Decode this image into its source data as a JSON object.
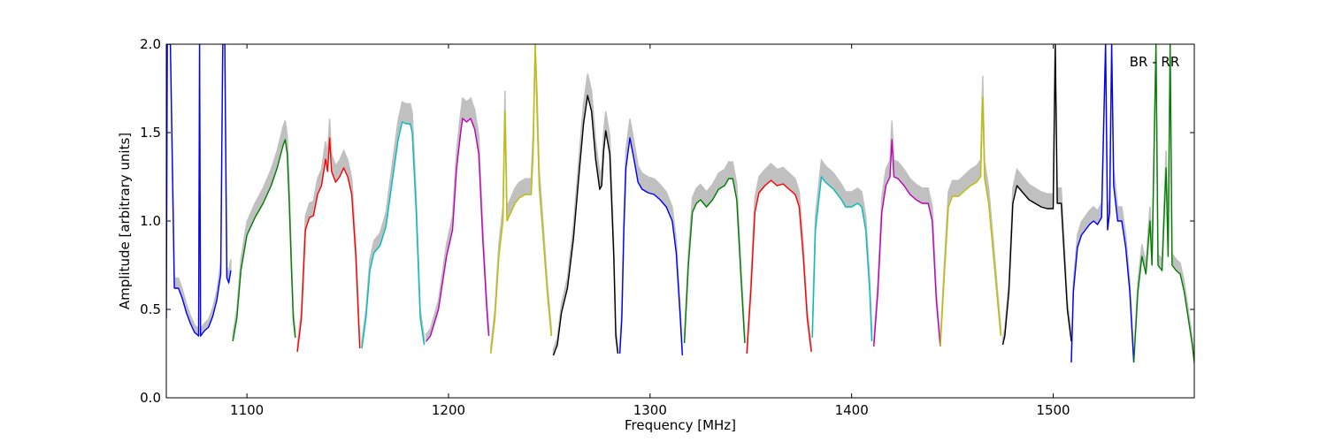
{
  "chart_data": {
    "type": "line",
    "title": "",
    "xlabel": "Frequency [MHz]",
    "ylabel": "Amplitude [arbitrary units]",
    "annotation": "BR - RR",
    "xlim": [
      1060,
      1570
    ],
    "ylim": [
      0,
      2.0
    ],
    "xticks": [
      1100,
      1200,
      1300,
      1400,
      1500
    ],
    "xtick_labels": [
      "1100",
      "1200",
      "1300",
      "1400",
      "1500"
    ],
    "yticks": [
      0.0,
      0.5,
      1.0,
      1.5,
      2.0
    ],
    "ytick_labels": [
      "0.0",
      "0.5",
      "1.0",
      "1.5",
      "2.0"
    ],
    "grid": false,
    "background_color": "#c0c0c0",
    "series": [
      {
        "color": "#0000ff",
        "points": [
          [
            1060,
            0.45
          ],
          [
            1060.5,
            2.0
          ],
          [
            1062,
            2.0
          ],
          [
            1064,
            0.62
          ],
          [
            1066,
            0.62
          ],
          [
            1068,
            0.56
          ],
          [
            1070,
            0.48
          ],
          [
            1072,
            0.42
          ],
          [
            1074,
            0.37
          ],
          [
            1076,
            0.35
          ],
          [
            1076.5,
            2.0
          ],
          [
            1077,
            0.35
          ],
          [
            1079,
            0.38
          ],
          [
            1081,
            0.4
          ],
          [
            1083,
            0.46
          ],
          [
            1085,
            0.55
          ],
          [
            1087,
            0.7
          ],
          [
            1088,
            2.0
          ],
          [
            1089,
            2.0
          ],
          [
            1090,
            0.68
          ],
          [
            1091,
            0.65
          ],
          [
            1092,
            0.72
          ]
        ]
      },
      {
        "color": "#008000",
        "points": [
          [
            1093,
            0.32
          ],
          [
            1095,
            0.45
          ],
          [
            1097,
            0.72
          ],
          [
            1100,
            0.92
          ],
          [
            1104,
            1.02
          ],
          [
            1108,
            1.1
          ],
          [
            1112,
            1.2
          ],
          [
            1115,
            1.3
          ],
          [
            1118,
            1.43
          ],
          [
            1119,
            1.46
          ],
          [
            1120,
            1.38
          ],
          [
            1121,
            1.1
          ],
          [
            1122,
            0.75
          ],
          [
            1123,
            0.45
          ],
          [
            1124,
            0.34
          ]
        ]
      },
      {
        "color": "#ff0000",
        "points": [
          [
            1125,
            0.26
          ],
          [
            1127,
            0.45
          ],
          [
            1129,
            0.95
          ],
          [
            1131,
            1.02
          ],
          [
            1133,
            1.03
          ],
          [
            1135,
            1.15
          ],
          [
            1137,
            1.2
          ],
          [
            1139,
            1.35
          ],
          [
            1140,
            1.28
          ],
          [
            1141,
            1.47
          ],
          [
            1142,
            1.28
          ],
          [
            1144,
            1.22
          ],
          [
            1146,
            1.25
          ],
          [
            1148,
            1.3
          ],
          [
            1150,
            1.25
          ],
          [
            1152,
            1.15
          ],
          [
            1154,
            0.8
          ],
          [
            1156,
            0.28
          ]
        ]
      },
      {
        "color": "#00bfbf",
        "points": [
          [
            1157,
            0.28
          ],
          [
            1159,
            0.45
          ],
          [
            1161,
            0.72
          ],
          [
            1163,
            0.82
          ],
          [
            1166,
            0.86
          ],
          [
            1169,
            0.97
          ],
          [
            1172,
            1.22
          ],
          [
            1175,
            1.46
          ],
          [
            1177,
            1.56
          ],
          [
            1179,
            1.55
          ],
          [
            1181,
            1.55
          ],
          [
            1182,
            1.5
          ],
          [
            1184,
            1.05
          ],
          [
            1186,
            0.45
          ],
          [
            1188,
            0.3
          ]
        ]
      },
      {
        "color": "#bf00bf",
        "points": [
          [
            1189,
            0.32
          ],
          [
            1191,
            0.35
          ],
          [
            1195,
            0.5
          ],
          [
            1199,
            0.8
          ],
          [
            1202,
            0.95
          ],
          [
            1204,
            1.3
          ],
          [
            1206,
            1.5
          ],
          [
            1207,
            1.58
          ],
          [
            1209,
            1.56
          ],
          [
            1211,
            1.58
          ],
          [
            1213,
            1.52
          ],
          [
            1215,
            1.38
          ],
          [
            1217,
            0.9
          ],
          [
            1219,
            0.5
          ],
          [
            1220,
            0.35
          ]
        ]
      },
      {
        "color": "#bfbf00",
        "points": [
          [
            1221,
            0.25
          ],
          [
            1223,
            0.45
          ],
          [
            1225,
            0.8
          ],
          [
            1227,
            1.0
          ],
          [
            1228,
            1.62
          ],
          [
            1229,
            1.0
          ],
          [
            1231,
            1.05
          ],
          [
            1233,
            1.1
          ],
          [
            1235,
            1.13
          ],
          [
            1238,
            1.15
          ],
          [
            1241,
            1.15
          ],
          [
            1242,
            1.4
          ],
          [
            1243,
            2.0
          ],
          [
            1244,
            1.6
          ],
          [
            1245,
            1.2
          ],
          [
            1247,
            0.9
          ],
          [
            1249,
            0.6
          ],
          [
            1251,
            0.35
          ]
        ]
      },
      {
        "color": "#000000",
        "points": [
          [
            1252,
            0.24
          ],
          [
            1254,
            0.3
          ],
          [
            1256,
            0.48
          ],
          [
            1259,
            0.62
          ],
          [
            1262,
            0.9
          ],
          [
            1265,
            1.3
          ],
          [
            1267,
            1.55
          ],
          [
            1269,
            1.71
          ],
          [
            1271,
            1.62
          ],
          [
            1273,
            1.35
          ],
          [
            1275,
            1.18
          ],
          [
            1276,
            1.2
          ],
          [
            1277,
            1.4
          ],
          [
            1278,
            1.51
          ],
          [
            1280,
            1.38
          ],
          [
            1282,
            0.8
          ],
          [
            1283,
            0.35
          ],
          [
            1284,
            0.25
          ]
        ]
      },
      {
        "color": "#0000ff",
        "points": [
          [
            1285,
            0.25
          ],
          [
            1286,
            0.45
          ],
          [
            1287,
            0.95
          ],
          [
            1288,
            1.3
          ],
          [
            1290,
            1.47
          ],
          [
            1292,
            1.35
          ],
          [
            1294,
            1.22
          ],
          [
            1296,
            1.18
          ],
          [
            1299,
            1.16
          ],
          [
            1302,
            1.15
          ],
          [
            1305,
            1.12
          ],
          [
            1308,
            1.08
          ],
          [
            1311,
            1.0
          ],
          [
            1313,
            0.82
          ],
          [
            1315,
            0.45
          ],
          [
            1316,
            0.24
          ]
        ]
      },
      {
        "color": "#008000",
        "points": [
          [
            1317,
            0.31
          ],
          [
            1319,
            0.75
          ],
          [
            1321,
            1.05
          ],
          [
            1323,
            1.1
          ],
          [
            1325,
            1.12
          ],
          [
            1328,
            1.08
          ],
          [
            1331,
            1.12
          ],
          [
            1334,
            1.18
          ],
          [
            1337,
            1.2
          ],
          [
            1339,
            1.24
          ],
          [
            1341,
            1.24
          ],
          [
            1343,
            1.12
          ],
          [
            1345,
            0.7
          ],
          [
            1347,
            0.31
          ]
        ]
      },
      {
        "color": "#ff0000",
        "points": [
          [
            1348,
            0.25
          ],
          [
            1350,
            0.6
          ],
          [
            1352,
            1.05
          ],
          [
            1354,
            1.16
          ],
          [
            1357,
            1.2
          ],
          [
            1360,
            1.23
          ],
          [
            1363,
            1.2
          ],
          [
            1366,
            1.21
          ],
          [
            1369,
            1.18
          ],
          [
            1372,
            1.15
          ],
          [
            1374,
            1.08
          ],
          [
            1376,
            0.8
          ],
          [
            1378,
            0.45
          ],
          [
            1380,
            0.26
          ]
        ]
      },
      {
        "color": "#00bfbf",
        "points": [
          [
            1380.5,
            0.34
          ],
          [
            1381,
            0.55
          ],
          [
            1382,
            0.95
          ],
          [
            1384,
            1.15
          ],
          [
            1385,
            1.25
          ],
          [
            1387,
            1.22
          ],
          [
            1389,
            1.2
          ],
          [
            1391,
            1.18
          ],
          [
            1393,
            1.15
          ],
          [
            1395,
            1.12
          ],
          [
            1397,
            1.08
          ],
          [
            1400,
            1.08
          ],
          [
            1403,
            1.1
          ],
          [
            1405,
            1.08
          ],
          [
            1407,
            0.95
          ],
          [
            1409,
            0.6
          ],
          [
            1410,
            0.32
          ]
        ]
      },
      {
        "color": "#bf00bf",
        "points": [
          [
            1411,
            0.29
          ],
          [
            1413,
            0.6
          ],
          [
            1415,
            1.05
          ],
          [
            1417,
            1.2
          ],
          [
            1419,
            1.25
          ],
          [
            1420,
            1.46
          ],
          [
            1421,
            1.25
          ],
          [
            1423,
            1.24
          ],
          [
            1426,
            1.2
          ],
          [
            1429,
            1.15
          ],
          [
            1432,
            1.12
          ],
          [
            1435,
            1.1
          ],
          [
            1438,
            1.1
          ],
          [
            1440,
            1.0
          ],
          [
            1442,
            0.55
          ],
          [
            1444,
            0.29
          ]
        ]
      },
      {
        "color": "#bfbf00",
        "points": [
          [
            1444,
            0.29
          ],
          [
            1446,
            0.7
          ],
          [
            1448,
            1.08
          ],
          [
            1450,
            1.14
          ],
          [
            1453,
            1.14
          ],
          [
            1456,
            1.17
          ],
          [
            1459,
            1.2
          ],
          [
            1462,
            1.22
          ],
          [
            1464,
            1.25
          ],
          [
            1465,
            1.7
          ],
          [
            1466,
            1.24
          ],
          [
            1468,
            1.1
          ],
          [
            1470,
            0.85
          ],
          [
            1472,
            0.6
          ],
          [
            1474,
            0.35
          ]
        ]
      },
      {
        "color": "#000000",
        "points": [
          [
            1475,
            0.3
          ],
          [
            1476,
            0.35
          ],
          [
            1478,
            0.6
          ],
          [
            1480,
            1.1
          ],
          [
            1482,
            1.2
          ],
          [
            1485,
            1.16
          ],
          [
            1488,
            1.12
          ],
          [
            1491,
            1.1
          ],
          [
            1494,
            1.08
          ],
          [
            1497,
            1.07
          ],
          [
            1500,
            1.07
          ],
          [
            1501,
            2.0
          ],
          [
            1502,
            1.1
          ],
          [
            1504,
            1.1
          ],
          [
            1505,
            0.9
          ],
          [
            1507,
            0.5
          ],
          [
            1509,
            0.32
          ]
        ]
      },
      {
        "color": "#0000ff",
        "points": [
          [
            1509,
            0.2
          ],
          [
            1510,
            0.6
          ],
          [
            1512,
            0.85
          ],
          [
            1514,
            0.92
          ],
          [
            1516,
            0.95
          ],
          [
            1518,
            0.98
          ],
          [
            1520,
            1.0
          ],
          [
            1522,
            0.98
          ],
          [
            1524,
            1.02
          ],
          [
            1526,
            2.0
          ],
          [
            1527,
            0.95
          ],
          [
            1528,
            1.05
          ],
          [
            1529,
            2.0
          ],
          [
            1530,
            1.2
          ],
          [
            1532,
            1.0
          ],
          [
            1534,
            1.0
          ],
          [
            1536,
            0.85
          ],
          [
            1538,
            0.6
          ],
          [
            1540,
            0.2
          ]
        ]
      },
      {
        "color": "#008000",
        "points": [
          [
            1540,
            0.2
          ],
          [
            1542,
            0.6
          ],
          [
            1544,
            0.8
          ],
          [
            1546,
            0.7
          ],
          [
            1548,
            1.0
          ],
          [
            1549,
            0.75
          ],
          [
            1551,
            2.0
          ],
          [
            1552,
            0.75
          ],
          [
            1554,
            0.72
          ],
          [
            1556,
            1.3
          ],
          [
            1557,
            0.8
          ],
          [
            1558,
            2.0
          ],
          [
            1559,
            0.75
          ],
          [
            1561,
            0.72
          ],
          [
            1563,
            0.7
          ],
          [
            1565,
            0.6
          ],
          [
            1567,
            0.45
          ],
          [
            1569,
            0.3
          ],
          [
            1570,
            0.2
          ]
        ]
      }
    ]
  }
}
